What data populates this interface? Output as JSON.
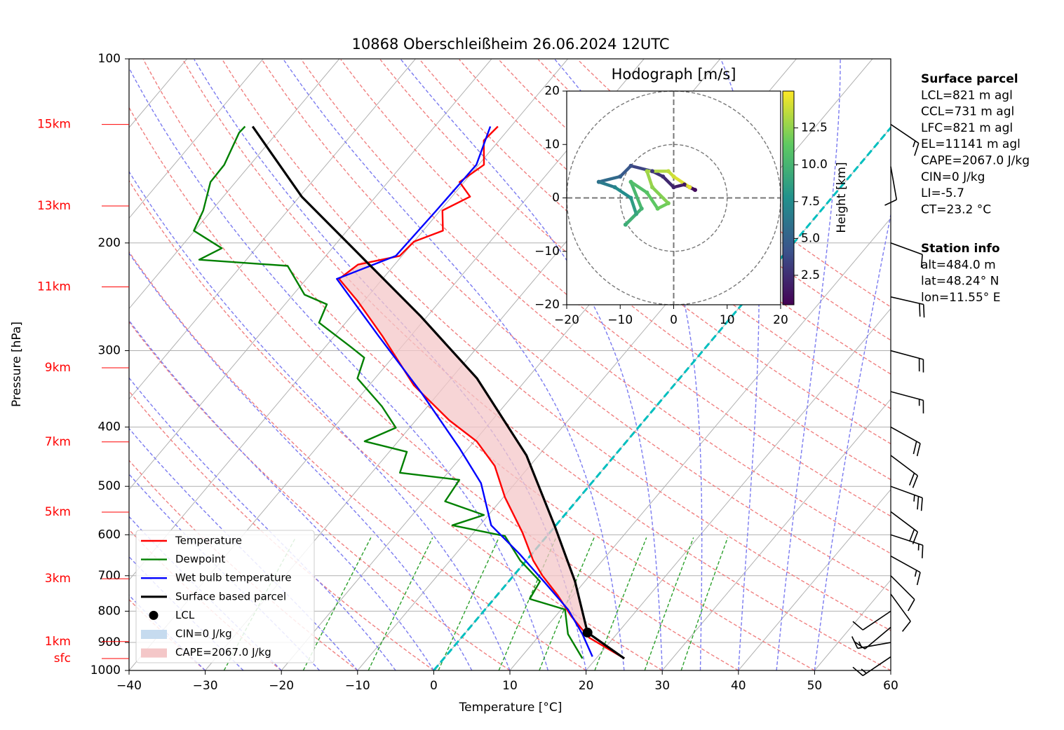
{
  "title": "10868 Oberschleißheim 26.06.2024 12UTC",
  "chart_data": [
    {
      "type": "skewt",
      "xlabel": "Temperature [°C]",
      "ylabel": "Pressure [hPa]",
      "xlim": [
        -40,
        60
      ],
      "xticks": [
        {
          "value": -40,
          "label": "−40"
        },
        {
          "value": -30,
          "label": "−30"
        },
        {
          "value": -20,
          "label": "−20"
        },
        {
          "value": -10,
          "label": "−10"
        },
        0,
        10,
        20,
        30,
        40,
        50,
        60
      ],
      "ylim": [
        1000,
        100
      ],
      "log_y": true,
      "yticks": [
        100,
        200,
        300,
        400,
        500,
        600,
        700,
        800,
        900,
        1000
      ],
      "grid": true,
      "highlight_isotherm": {
        "value": 0,
        "color": "#00bfbf"
      },
      "height_labels": {
        "color": "#ff0000",
        "labels": [
          "15km",
          "13km",
          "11km",
          "9km",
          "7km",
          "5km",
          "3km",
          "1km",
          "sfc"
        ],
        "pressure": [
          128,
          174,
          236,
          320,
          423,
          551,
          708,
          897,
          956
        ]
      },
      "series": [
        {
          "name": "Temperature",
          "color": "#ff0000",
          "pressure": [
            956,
            884,
            816,
            754,
            700,
            661,
            595,
            521,
            463,
            422,
            390,
            342,
            284,
            249,
            229,
            217,
            210,
            199,
            191,
            177,
            168,
            159,
            149,
            136,
            129
          ],
          "values": [
            23.7,
            16.8,
            12.1,
            8.0,
            3.8,
            0.9,
            -3.6,
            -9.8,
            -14.6,
            -19.7,
            -25.6,
            -34.1,
            -43.7,
            -50.8,
            -55.7,
            -54.8,
            -50.3,
            -50.0,
            -47.4,
            -49.7,
            -47.6,
            -50.6,
            -49.3,
            -52.0,
            -51.7
          ]
        },
        {
          "name": "Dewpoint",
          "color": "#008000",
          "pressure": [
            956,
            872,
            795,
            764,
            715,
            661,
            603,
            579,
            557,
            529,
            488,
            475,
            439,
            422,
            401,
            370,
            333,
            308,
            296,
            270,
            252,
            243,
            218,
            213,
            204,
            191,
            177,
            159,
            149,
            132,
            129
          ],
          "values": [
            18.2,
            13.6,
            10.5,
            4.7,
            4.1,
            -0.8,
            -5.5,
            -13.6,
            -10.6,
            -17.2,
            -17.7,
            -26.3,
            -27.7,
            -34.4,
            -31.8,
            -36.0,
            -42.3,
            -43.7,
            -46.6,
            -53.5,
            -54.5,
            -58.5,
            -63.9,
            -76.2,
            -74.5,
            -80.1,
            -81.1,
            -83.3,
            -83.4,
            -85.0,
            -84.9
          ]
        },
        {
          "name": "Wet bulb temperature",
          "color": "#0000ff",
          "pressure": [
            949,
            872,
            795,
            715,
            644,
            579,
            494,
            433,
            351,
            284,
            229,
            210,
            177,
            149,
            129
          ],
          "values": [
            19.3,
            15.5,
            10.9,
            4.6,
            -1.7,
            -8.5,
            -14.5,
            -21.2,
            -32.4,
            -44.2,
            -56.0,
            -50.8,
            -50.5,
            -50.3,
            -52.7
          ]
        },
        {
          "name": "Surface based parcel",
          "color": "#000000",
          "pressure": [
            956,
            867,
            715,
            579,
            445,
            333,
            263,
            213,
            168,
            129
          ],
          "values": [
            23.7,
            16.0,
            8.7,
            -0.2,
            -11.6,
            -26.6,
            -41.0,
            -54.5,
            -69.7,
            -83.9
          ]
        }
      ],
      "lcl": {
        "name": "LCL",
        "color": "#000000",
        "pressure": 867,
        "value": 16.0
      },
      "shading": [
        {
          "name": "CIN=0 J/kg",
          "color": "#c6dbef"
        },
        {
          "name": "CAPE=2067.0 J/kg",
          "color": "#f4c7c8"
        }
      ],
      "legend": "lower left",
      "wind_barbs": {
        "pressure": [
          128,
          150,
          200,
          245,
          300,
          350,
          400,
          445,
          500,
          550,
          600,
          650,
          700,
          750,
          800,
          850,
          900,
          950
        ],
        "direction": [
          124,
          170,
          110,
          103,
          105,
          105,
          119,
          127,
          110,
          127,
          108,
          119,
          135,
          144,
          236,
          230,
          260,
          236
        ],
        "speed": [
          15,
          10,
          10,
          20,
          20,
          15,
          20,
          20,
          25,
          20,
          15,
          15,
          10,
          10,
          10,
          10,
          15,
          15
        ]
      }
    },
    {
      "type": "hodograph",
      "title": "Hodograph [m/s]",
      "xlim": [
        -20,
        20
      ],
      "ylim": [
        -20,
        20
      ],
      "xticks": [
        {
          "value": -20,
          "label": "−20"
        },
        {
          "value": -10,
          "label": "−10"
        },
        0,
        10,
        20
      ],
      "yticks": [
        {
          "value": -20,
          "label": "−20"
        },
        {
          "value": -10,
          "label": "−10"
        },
        0,
        10,
        20
      ],
      "rings": [
        10,
        20
      ],
      "height": [
        0.5,
        1.0,
        1.5,
        2.0,
        2.5,
        3.0,
        4.0,
        5.0,
        6.0,
        7.0,
        8.0,
        9.0,
        9.5,
        10.0,
        10.5,
        11.0,
        11.5,
        12.0,
        12.5,
        13.0,
        13.5,
        14.0,
        14.5
      ],
      "u": [
        3,
        4,
        2,
        0,
        -2,
        -4,
        -8,
        -10,
        -14,
        -11,
        -8,
        -7,
        -9,
        -6,
        -8,
        -5,
        -3,
        -1,
        -4,
        -5,
        -1,
        0,
        3
      ],
      "v": [
        2,
        1.5,
        2.5,
        2,
        4,
        5,
        6,
        4,
        3,
        2,
        0,
        -3,
        -5,
        -2,
        3,
        1,
        -2,
        -1,
        2,
        5,
        5,
        4,
        2
      ],
      "colorbar": {
        "label": "Height [km]",
        "lim": [
          0.5,
          15
        ],
        "ticks": [
          2.5,
          {
            "value": 5,
            "label": "5.0"
          },
          7.5,
          {
            "value": 10,
            "label": "10.0"
          },
          12.5
        ]
      }
    }
  ],
  "info_panels": [
    {
      "title": "Surface parcel",
      "lines": [
        "LCL=821 m agl",
        "CCL=731 m agl",
        "LFC=821 m agl",
        "EL=11141 m agl",
        "CAPE=2067.0 J/kg",
        "CIN=0 J/kg",
        "LI=-5.7",
        "CT=23.2 °C"
      ]
    },
    {
      "title": "Station info",
      "lines": [
        "alt=484.0 m",
        "lat=48.24° N",
        "lon=11.55° E"
      ]
    }
  ]
}
